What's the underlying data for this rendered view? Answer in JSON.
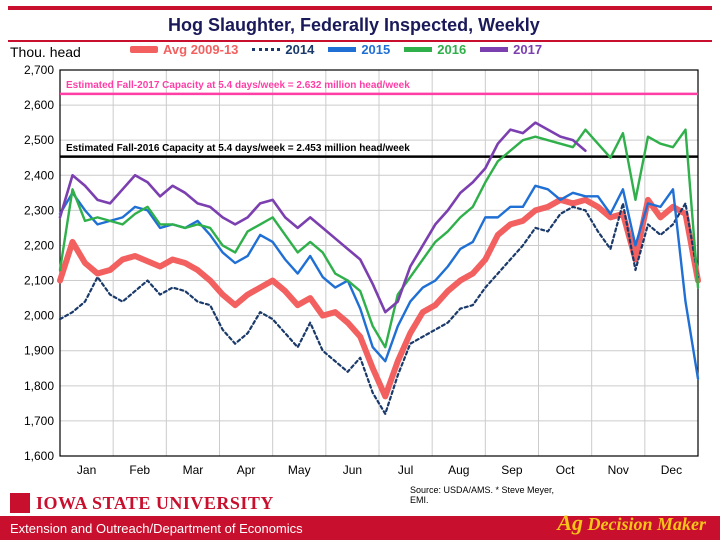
{
  "title": "Hog Slaughter, Federally Inspected, Weekly",
  "yaxis_title": "Thou. head",
  "legend": [
    {
      "label": "Avg 2009-13",
      "color": "#f26060",
      "style": "thick"
    },
    {
      "label": "2014",
      "color": "#1a3a6b",
      "style": "dotted"
    },
    {
      "label": "2015",
      "color": "#1f6fd4",
      "style": "line"
    },
    {
      "label": "2016",
      "color": "#2fb04a",
      "style": "line"
    },
    {
      "label": "2017",
      "color": "#7b3fb0",
      "style": "line"
    }
  ],
  "chart": {
    "type": "line",
    "ylim": [
      1600,
      2700
    ],
    "ytick_step": 100,
    "xlabels": [
      "Jan",
      "Feb",
      "Mar",
      "Apr",
      "May",
      "Jun",
      "Jul",
      "Aug",
      "Sep",
      "Oct",
      "Nov",
      "Dec"
    ],
    "background": "#ffffff",
    "grid_color": "#cccccc",
    "axis_color": "#000000",
    "label_fontsize": 12,
    "capacity_lines": [
      {
        "label": "Estimated Fall-2017 Capacity at 5.4 days/week = 2.632 million head/week",
        "y": 2632,
        "color": "#ff3fa6"
      },
      {
        "label": "Estimated Fall-2016 Capacity at 5.4 days/week = 2.453 million head/week",
        "y": 2453,
        "color": "#000000"
      }
    ],
    "series": {
      "avg0913": {
        "color": "#f26060",
        "width": 6,
        "dash": "",
        "data": [
          2100,
          2210,
          2150,
          2120,
          2130,
          2160,
          2170,
          2155,
          2140,
          2160,
          2150,
          2130,
          2100,
          2060,
          2030,
          2060,
          2080,
          2100,
          2070,
          2030,
          2050,
          2000,
          2010,
          1980,
          1940,
          1850,
          1770,
          1870,
          1950,
          2010,
          2030,
          2070,
          2100,
          2120,
          2160,
          2230,
          2260,
          2270,
          2300,
          2310,
          2330,
          2320,
          2330,
          2310,
          2280,
          2290,
          2160,
          2330,
          2280,
          2310,
          2290,
          2100
        ]
      },
      "y2014": {
        "color": "#1a3a6b",
        "width": 2.2,
        "dash": "3,3",
        "data": [
          1990,
          2010,
          2040,
          2110,
          2060,
          2040,
          2070,
          2100,
          2060,
          2080,
          2070,
          2040,
          2030,
          1960,
          1920,
          1950,
          2010,
          1990,
          1950,
          1910,
          1980,
          1900,
          1870,
          1840,
          1880,
          1780,
          1720,
          1830,
          1920,
          1940,
          1960,
          1980,
          2020,
          2030,
          2080,
          2120,
          2160,
          2200,
          2250,
          2240,
          2290,
          2310,
          2300,
          2240,
          2190,
          2320,
          2130,
          2260,
          2230,
          2260,
          2320,
          2110
        ]
      },
      "y2015": {
        "color": "#1f6fd4",
        "width": 2.4,
        "dash": "",
        "data": [
          2290,
          2350,
          2300,
          2260,
          2270,
          2280,
          2310,
          2300,
          2250,
          2260,
          2250,
          2270,
          2230,
          2180,
          2150,
          2170,
          2230,
          2210,
          2160,
          2120,
          2170,
          2110,
          2080,
          2100,
          2020,
          1910,
          1870,
          1970,
          2040,
          2080,
          2100,
          2140,
          2190,
          2210,
          2280,
          2280,
          2310,
          2310,
          2370,
          2360,
          2330,
          2350,
          2340,
          2340,
          2290,
          2360,
          2200,
          2320,
          2310,
          2360,
          2040,
          1820
        ]
      },
      "y2016": {
        "color": "#2fb04a",
        "width": 2.4,
        "dash": "",
        "data": [
          2130,
          2360,
          2270,
          2280,
          2270,
          2260,
          2290,
          2310,
          2260,
          2260,
          2250,
          2260,
          2250,
          2200,
          2180,
          2240,
          2260,
          2280,
          2230,
          2180,
          2210,
          2180,
          2120,
          2100,
          2070,
          1970,
          1910,
          2060,
          2110,
          2160,
          2210,
          2240,
          2280,
          2310,
          2380,
          2440,
          2470,
          2500,
          2510,
          2500,
          2490,
          2480,
          2530,
          2490,
          2450,
          2520,
          2330,
          2510,
          2490,
          2480,
          2530,
          2080
        ]
      },
      "y2017": {
        "color": "#7b3fb0",
        "width": 2.6,
        "dash": "",
        "data": [
          2280,
          2400,
          2370,
          2330,
          2320,
          2360,
          2400,
          2380,
          2340,
          2370,
          2350,
          2320,
          2310,
          2280,
          2260,
          2280,
          2320,
          2330,
          2280,
          2250,
          2280,
          2250,
          2220,
          2190,
          2160,
          2090,
          2010,
          2040,
          2140,
          2200,
          2260,
          2300,
          2350,
          2380,
          2420,
          2490,
          2530,
          2520,
          2550,
          2530,
          2510,
          2500,
          2470
        ]
      }
    }
  },
  "footer": {
    "university": "IOWA STATE UNIVERSITY",
    "dept": "Extension and Outreach/Department of Economics",
    "source": "Source: USDA/AMS. * Steve Meyer, EMI.",
    "brand": "Ag Decision Maker"
  }
}
